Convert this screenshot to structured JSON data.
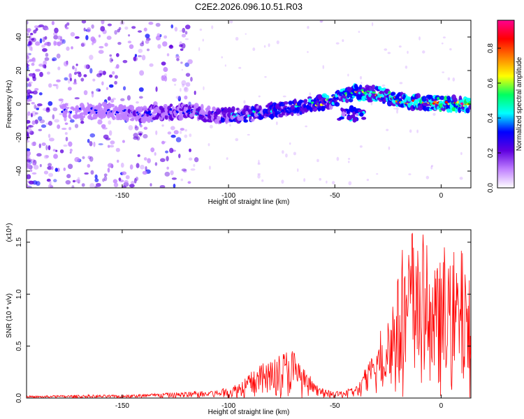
{
  "title": "C2E2.2026.096.10.51.R03",
  "chart_data": [
    {
      "type": "heatmap",
      "name": "spectrogram",
      "xlabel": "Height of straight line (km)",
      "ylabel": "Frequency (Hz)",
      "xlim": [
        -195,
        14
      ],
      "ylim": [
        -50,
        50
      ],
      "xticks": [
        -150,
        -100,
        -50,
        0
      ],
      "yticks": [
        -40,
        -20,
        0,
        20,
        40
      ],
      "colorbar": {
        "label": "Normalized spectral amplitude",
        "range": [
          0,
          0.96
        ],
        "ticks": [
          "0.0",
          "0.2",
          "0.4",
          "0.6",
          "0.8"
        ],
        "colors": [
          "#ffffff",
          "#c080ff",
          "#6000e0",
          "#0000ff",
          "#00ffff",
          "#00ff60",
          "#ffff00",
          "#ff8000",
          "#ff0000",
          "#ff0090"
        ]
      },
      "ridge": {
        "x": [
          -175,
          -160,
          -150,
          -140,
          -130,
          -120,
          -110,
          -100,
          -90,
          -80,
          -70,
          -60,
          -52,
          -46,
          -40,
          -30,
          -20,
          -10,
          0,
          10,
          14
        ],
        "y": [
          -4,
          -4,
          -5,
          -6,
          -5,
          -4,
          -6,
          -7,
          -6,
          -4,
          -2,
          0,
          2,
          5,
          7,
          6,
          2,
          1,
          0,
          0,
          0
        ]
      },
      "side_blob": {
        "x": -42,
        "y": -6
      }
    },
    {
      "type": "line",
      "name": "snr",
      "xlabel": "Height of straight line (km)",
      "ylabel": "SNR (10 * v/v)",
      "multiplier": "(x10⁴)",
      "xlim": [
        -195,
        14
      ],
      "ylim": [
        0,
        1.62
      ],
      "xticks": [
        -150,
        -100,
        -50,
        0
      ],
      "yticks": [
        "0.0",
        "0.5",
        "1.0",
        "1.5"
      ],
      "color": "#ff0000",
      "envelope": {
        "x": [
          -195,
          -170,
          -150,
          -140,
          -130,
          -120,
          -110,
          -105,
          -100,
          -95,
          -90,
          -85,
          -80,
          -75,
          -70,
          -65,
          -60,
          -55,
          -50,
          -45,
          -40,
          -35,
          -30,
          -25,
          -20,
          -15,
          -10,
          -5,
          0,
          5,
          10,
          14
        ],
        "y": [
          0.02,
          0.03,
          0.03,
          0.04,
          0.05,
          0.06,
          0.07,
          0.08,
          0.1,
          0.16,
          0.25,
          0.32,
          0.38,
          0.45,
          0.5,
          0.3,
          0.15,
          0.08,
          0.06,
          0.08,
          0.12,
          0.3,
          0.55,
          0.9,
          1.2,
          1.5,
          1.6,
          1.2,
          1.35,
          1.3,
          1.45,
          1.1
        ]
      }
    }
  ]
}
